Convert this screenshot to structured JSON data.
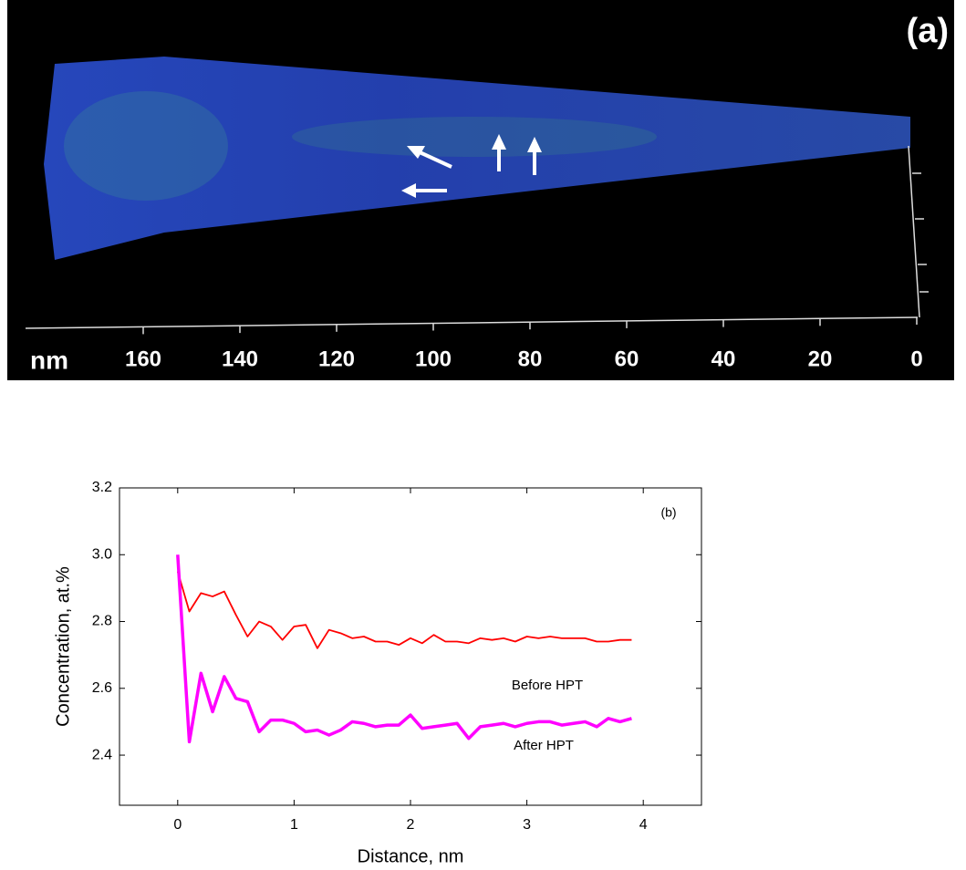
{
  "image_panel": {
    "label": "(a)",
    "unit": "nm",
    "scale_ticks": [
      160,
      140,
      120,
      100,
      80,
      60,
      40,
      20,
      0
    ]
  },
  "chart_data": {
    "type": "line",
    "panel_label": "(b)",
    "x_label": "Distance, nm",
    "y_label": "Concentration, at.%",
    "x": [
      0,
      0.1,
      0.2,
      0.3,
      0.4,
      0.5,
      0.6,
      0.7,
      0.8,
      0.9,
      1.0,
      1.1,
      1.2,
      1.3,
      1.4,
      1.5,
      1.6,
      1.7,
      1.8,
      1.9,
      2.0,
      2.1,
      2.2,
      2.3,
      2.4,
      2.5,
      2.6,
      2.7,
      2.8,
      2.9,
      3.0,
      3.1,
      3.2,
      3.3,
      3.4,
      3.5,
      3.6,
      3.7,
      3.8,
      3.9
    ],
    "series": [
      {
        "name": "Before HPT",
        "color": "#ff0000",
        "values": [
          2.95,
          2.83,
          2.885,
          2.875,
          2.89,
          2.82,
          2.755,
          2.8,
          2.785,
          2.745,
          2.785,
          2.79,
          2.72,
          2.775,
          2.765,
          2.75,
          2.755,
          2.74,
          2.74,
          2.73,
          2.75,
          2.735,
          2.76,
          2.74,
          2.74,
          2.735,
          2.75,
          2.745,
          2.75,
          2.74,
          2.755,
          2.75,
          2.755,
          2.75,
          2.75,
          2.75,
          2.74,
          2.74,
          2.745,
          2.745
        ]
      },
      {
        "name": "After HPT",
        "color": "#ff00ff",
        "values": [
          3.0,
          2.44,
          2.645,
          2.53,
          2.635,
          2.57,
          2.56,
          2.47,
          2.505,
          2.505,
          2.495,
          2.47,
          2.475,
          2.46,
          2.475,
          2.5,
          2.495,
          2.485,
          2.49,
          2.49,
          2.52,
          2.48,
          2.485,
          2.49,
          2.495,
          2.45,
          2.485,
          2.49,
          2.495,
          2.485,
          2.495,
          2.5,
          2.5,
          2.49,
          2.495,
          2.5,
          2.485,
          2.51,
          2.5,
          2.51
        ]
      }
    ],
    "xlim": [
      -0.5,
      4.5
    ],
    "xticks": [
      0,
      1,
      2,
      3,
      4
    ],
    "ylim": [
      2.25,
      3.2
    ],
    "yticks": [
      2.4,
      2.6,
      2.8,
      {
        "value": 3,
        "label": "3.0"
      },
      3.2
    ]
  }
}
